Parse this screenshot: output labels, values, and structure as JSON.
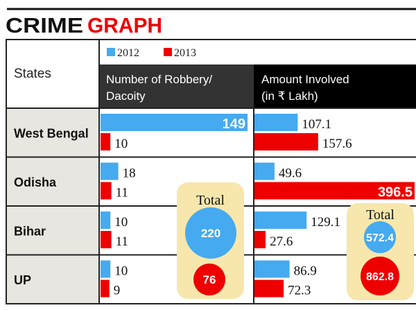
{
  "title": {
    "part1": "CRIME",
    "part2": "GRAPH"
  },
  "colors": {
    "c2012": "#45aaf0",
    "c2013": "#ee0000",
    "header1": "#333333",
    "header2": "#000000",
    "states_bg": "#e8e6e0",
    "total_bg": "#f7e7ac"
  },
  "chart_data": {
    "type": "bar",
    "legend": [
      "2012",
      "2013"
    ],
    "row_header": "States",
    "categories": [
      "West Bengal",
      "Odisha",
      "Bihar",
      "UP"
    ],
    "panels": [
      {
        "title_line1": "Number of Robbery/",
        "title_line2": "Dacoity",
        "series": [
          {
            "name": "2012",
            "values": [
              149,
              18,
              10,
              10
            ]
          },
          {
            "name": "2013",
            "values": [
              10,
              11,
              11,
              9
            ]
          }
        ],
        "total_label": "Total",
        "totals": [
          220,
          76
        ]
      },
      {
        "title_line1": "Amount Involved",
        "title_line2": "(in ₹ Lakh)",
        "series": [
          {
            "name": "2012",
            "values": [
              107.1,
              49.6,
              129.1,
              86.9
            ]
          },
          {
            "name": "2013",
            "values": [
              157.6,
              396.5,
              27.6,
              72.3
            ]
          }
        ],
        "total_label": "Total",
        "totals": [
          572.4,
          862.8
        ]
      }
    ]
  }
}
